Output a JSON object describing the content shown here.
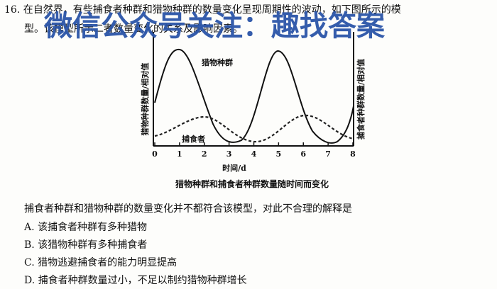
{
  "question": {
    "line1": "16. 在自然界，有些捕食者种群和猎物种群的数量变化呈现周期性的波动，如下图所示的模",
    "line2": "型。该模型所示二者数量变化的关系及影响因素。",
    "stem": "捕食者种群和猎物种群的数量变化并不都符合该模型，对此不合理的解释是"
  },
  "chart": {
    "prey_label": "猎物种群",
    "predator_label": "捕食者",
    "left_axis_label": "猎物种群数量/相对值",
    "right_axis_label": "捕食者种群数量/相对值",
    "x_axis_label": "时间/d",
    "xticks": [
      0,
      1,
      2,
      3,
      4,
      5,
      6,
      7,
      8
    ],
    "caption": "猎物种群和捕食者种群数量随时间而变化"
  },
  "options": [
    "A. 该捕食者种群有多种猎物",
    "B. 该猎物种群有多种捕食者",
    "C. 猎物逃避捕食者的能力明显提高",
    "D. 捕食者种群数量过小，不足以制约猎物种群增长"
  ],
  "watermark": "微信公众号关注：趣找答案"
}
